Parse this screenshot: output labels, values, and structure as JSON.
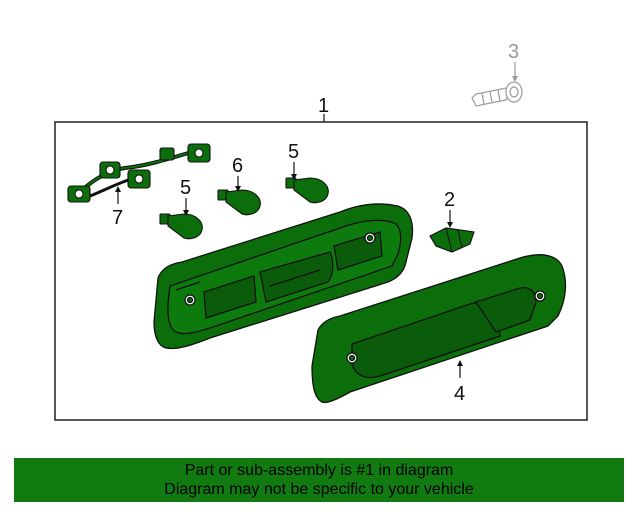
{
  "diagram": {
    "callouts": {
      "c1": "1",
      "c2": "2",
      "c3": "3",
      "c4": "4",
      "c5a": "5",
      "c5b": "5",
      "c6": "6",
      "c7": "7"
    }
  },
  "banner": {
    "line1": "Part or sub-assembly is #1 in diagram",
    "line2": "Diagram may not be specific to your vehicle"
  },
  "colors": {
    "part_fill": "#0b6e0b",
    "banner_bg": "#117a11",
    "callout_gray": "#999999"
  }
}
